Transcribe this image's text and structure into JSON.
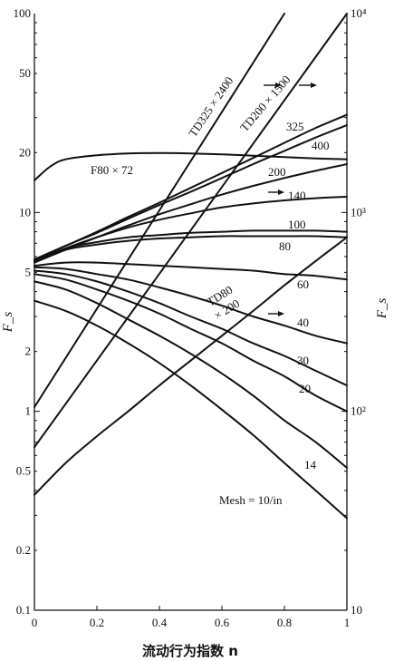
{
  "chart_data": {
    "type": "line",
    "xlabel": "流动行为指数 n",
    "ylabel_left": "F_s",
    "ylabel_right": "F_s",
    "xlim": [
      0,
      1
    ],
    "ylim_left": [
      0.1,
      100
    ],
    "ylim_right": [
      10,
      10000
    ],
    "yscale": "log",
    "grid": false,
    "x_ticks": [
      "0",
      "0.2",
      "0.4",
      "0.6",
      "0.8",
      "1"
    ],
    "left_ticks": [
      {
        "value": 100,
        "label": "100"
      },
      {
        "value": 50,
        "label": "50"
      },
      {
        "value": 20,
        "label": "20"
      },
      {
        "value": 10,
        "label": "10"
      },
      {
        "value": 5,
        "label": "5"
      },
      {
        "value": 2,
        "label": "2"
      },
      {
        "value": 1,
        "label": "1"
      },
      {
        "value": 0.5,
        "label": "0.5"
      },
      {
        "value": 0.2,
        "label": "0.2"
      },
      {
        "value": 0.1,
        "label": "0.1"
      }
    ],
    "right_ticks": [
      {
        "value": 10000,
        "label": "10⁴"
      },
      {
        "value": 1000,
        "label": "10³"
      },
      {
        "value": 100,
        "label": "10²"
      },
      {
        "value": 10,
        "label": "10"
      }
    ],
    "series": [
      {
        "name": "F80 × 72",
        "axis": "left",
        "x": [
          0,
          0.05,
          0.1,
          0.2,
          0.3,
          0.4,
          0.5,
          0.6,
          0.7,
          0.8,
          0.9,
          1.0
        ],
        "y": [
          14.5,
          17,
          18.5,
          19.4,
          19.8,
          19.9,
          19.8,
          19.6,
          19.3,
          19,
          18.7,
          18.5
        ]
      },
      {
        "name": "325",
        "axis": "left",
        "x": [
          0,
          0.1,
          0.2,
          0.3,
          0.4,
          0.5,
          0.6,
          0.7,
          0.8,
          0.9,
          1.0
        ],
        "y": [
          5.8,
          6.8,
          8.0,
          9.5,
          11.2,
          13.3,
          15.8,
          18.8,
          22.4,
          26.6,
          31.0
        ]
      },
      {
        "name": "400",
        "axis": "left",
        "x": [
          0,
          0.1,
          0.2,
          0.3,
          0.4,
          0.5,
          0.6,
          0.7,
          0.8,
          0.9,
          1.0
        ],
        "y": [
          5.8,
          6.8,
          7.9,
          9.3,
          10.9,
          12.7,
          14.9,
          17.5,
          20.4,
          23.8,
          27.5
        ]
      },
      {
        "name": "200",
        "axis": "left",
        "x": [
          0,
          0.1,
          0.2,
          0.3,
          0.4,
          0.5,
          0.6,
          0.7,
          0.8,
          0.9,
          1.0
        ],
        "y": [
          5.6,
          6.5,
          7.5,
          8.6,
          9.8,
          11.0,
          12.3,
          13.6,
          14.9,
          16.2,
          17.5
        ]
      },
      {
        "name": "140",
        "axis": "left",
        "x": [
          0,
          0.1,
          0.2,
          0.3,
          0.4,
          0.5,
          0.6,
          0.7,
          0.8,
          0.9,
          1.0
        ],
        "y": [
          5.6,
          6.6,
          7.5,
          8.4,
          9.2,
          9.9,
          10.6,
          11.1,
          11.5,
          11.8,
          12.0
        ]
      },
      {
        "name": "100",
        "axis": "left",
        "x": [
          0,
          0.1,
          0.2,
          0.3,
          0.4,
          0.5,
          0.6,
          0.7,
          0.8,
          0.9,
          1.0
        ],
        "y": [
          5.7,
          6.6,
          7.1,
          7.5,
          7.7,
          7.9,
          8.0,
          8.1,
          8.1,
          8.1,
          8.0
        ]
      },
      {
        "name": "80",
        "axis": "left",
        "x": [
          0,
          0.1,
          0.2,
          0.3,
          0.4,
          0.5,
          0.6,
          0.7,
          0.8,
          0.9,
          1.0
        ],
        "y": [
          5.7,
          6.5,
          6.9,
          7.2,
          7.4,
          7.5,
          7.6,
          7.6,
          7.6,
          7.6,
          7.5
        ]
      },
      {
        "name": "60",
        "axis": "left",
        "x": [
          0,
          0.1,
          0.2,
          0.3,
          0.4,
          0.5,
          0.6,
          0.7,
          0.8,
          0.9,
          1.0
        ],
        "y": [
          5.4,
          5.6,
          5.6,
          5.5,
          5.4,
          5.3,
          5.2,
          5.1,
          4.9,
          4.8,
          4.6
        ]
      },
      {
        "name": "40",
        "axis": "left",
        "x": [
          0,
          0.1,
          0.2,
          0.3,
          0.4,
          0.5,
          0.6,
          0.7,
          0.8,
          0.9,
          1.0
        ],
        "y": [
          5.3,
          5.2,
          4.9,
          4.6,
          4.2,
          3.8,
          3.4,
          3.0,
          2.7,
          2.4,
          2.2
        ]
      },
      {
        "name": "30",
        "axis": "left",
        "x": [
          0,
          0.1,
          0.2,
          0.3,
          0.4,
          0.5,
          0.6,
          0.7,
          0.8,
          0.9,
          1.0
        ],
        "y": [
          5.1,
          4.9,
          4.5,
          4.0,
          3.5,
          3.0,
          2.6,
          2.2,
          1.9,
          1.6,
          1.35
        ]
      },
      {
        "name": "20",
        "axis": "left",
        "x": [
          0,
          0.1,
          0.2,
          0.3,
          0.4,
          0.5,
          0.6,
          0.7,
          0.8,
          0.9,
          1.0
        ],
        "y": [
          4.9,
          4.6,
          4.1,
          3.6,
          3.1,
          2.6,
          2.2,
          1.8,
          1.5,
          1.2,
          1.0
        ]
      },
      {
        "name": "14",
        "axis": "left",
        "x": [
          0,
          0.1,
          0.2,
          0.3,
          0.4,
          0.5,
          0.6,
          0.7,
          0.8,
          0.9,
          1.0
        ],
        "y": [
          4.5,
          4.1,
          3.5,
          2.9,
          2.4,
          1.95,
          1.55,
          1.2,
          0.9,
          0.7,
          0.52
        ]
      },
      {
        "name": "Mesh = 10/in",
        "axis": "left",
        "x": [
          0,
          0.1,
          0.2,
          0.3,
          0.4,
          0.5,
          0.6,
          0.7,
          0.8,
          0.9,
          1.0
        ],
        "y": [
          3.6,
          3.2,
          2.7,
          2.2,
          1.75,
          1.35,
          1.02,
          0.76,
          0.55,
          0.4,
          0.29
        ]
      },
      {
        "name": "TD325 × 2400",
        "axis": "right",
        "x": [
          0,
          0.8
        ],
        "y": [
          105,
          10000
        ]
      },
      {
        "name": "TD200 × 1500",
        "axis": "right",
        "x": [
          0,
          1.0
        ],
        "y": [
          66,
          10000
        ]
      },
      {
        "name": "TD80 × 200",
        "axis": "right",
        "x": [
          0,
          0.1,
          0.2,
          0.3,
          0.4,
          0.5,
          0.6,
          0.7,
          0.8,
          0.9,
          1.0
        ],
        "y": [
          38,
          55,
          75,
          100,
          135,
          180,
          240,
          320,
          430,
          570,
          750
        ]
      }
    ],
    "annotations": [
      "→",
      "→",
      "→",
      "→"
    ]
  },
  "labels": {
    "f80": "F80 × 72",
    "td325": "TD325 × 2400",
    "td200": "TD200 × 1500",
    "td80a": "TD80",
    "td80b": "× 200",
    "m325": "325",
    "m400": "400",
    "m200": "200",
    "m140": "140",
    "m100": "100",
    "m80": "80",
    "m60": "60",
    "m40": "40",
    "m30": "30",
    "m20": "20",
    "m14": "14",
    "mesh10": "Mesh = 10/in"
  }
}
